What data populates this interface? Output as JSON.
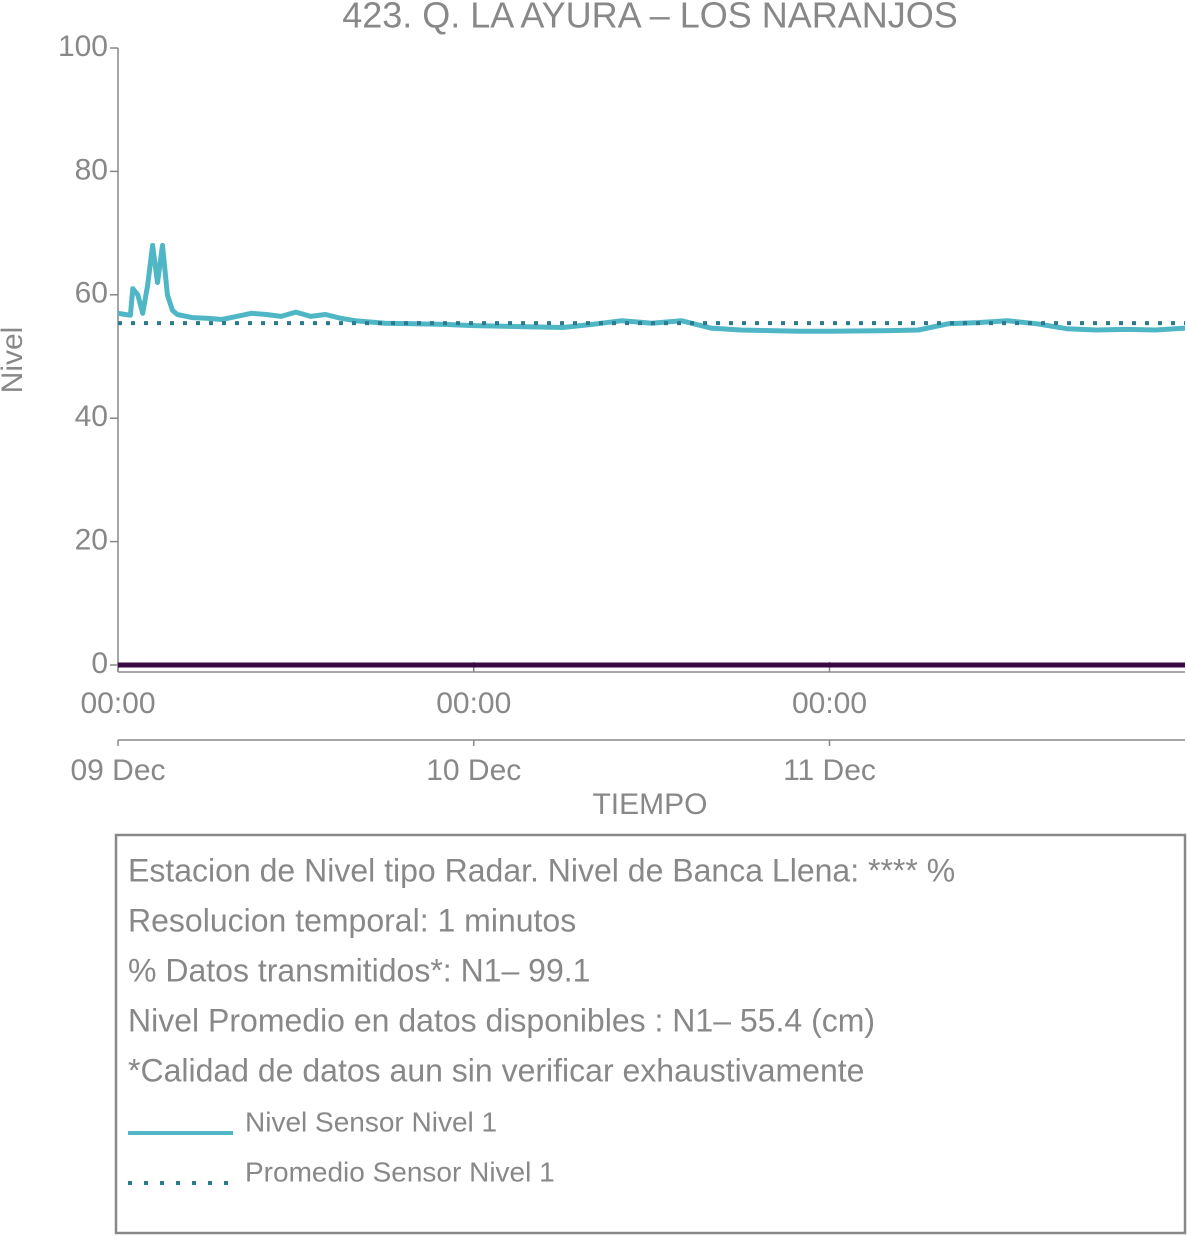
{
  "chart_data": {
    "type": "line",
    "title": "423. Q. LA AYURA – LOS NARANJOS",
    "ylabel": "Nivel",
    "xlabel": "TIEMPO",
    "ylim": [
      0,
      100
    ],
    "yticks": [
      0,
      20,
      40,
      60,
      80,
      100
    ],
    "xlim": [
      "09 Dec 00:00",
      "11 Dec 23:59"
    ],
    "xticks": [
      {
        "value": "09 Dec 00:00",
        "label": "00:00",
        "date": "09 Dec"
      },
      {
        "value": "10 Dec 00:00",
        "label": "00:00",
        "date": "10 Dec"
      },
      {
        "value": "11 Dec 00:00",
        "label": "00:00",
        "date": "11 Dec"
      }
    ],
    "x": [
      "09 Dec 00:00",
      "09 Dec 00:30",
      "09 Dec 00:50",
      "09 Dec 01:00",
      "09 Dec 01:20",
      "09 Dec 01:40",
      "09 Dec 02:00",
      "09 Dec 02:20",
      "09 Dec 02:40",
      "09 Dec 03:00",
      "09 Dec 03:20",
      "09 Dec 03:40",
      "09 Dec 04:00",
      "09 Dec 05:00",
      "09 Dec 06:00",
      "09 Dec 07:00",
      "09 Dec 08:00",
      "09 Dec 09:00",
      "09 Dec 10:00",
      "09 Dec 11:00",
      "09 Dec 12:00",
      "09 Dec 13:00",
      "09 Dec 14:00",
      "09 Dec 15:00",
      "09 Dec 16:00",
      "09 Dec 18:00",
      "09 Dec 20:00",
      "09 Dec 22:00",
      "10 Dec 00:00",
      "10 Dec 02:00",
      "10 Dec 04:00",
      "10 Dec 06:00",
      "10 Dec 08:00",
      "10 Dec 10:00",
      "10 Dec 12:00",
      "10 Dec 14:00",
      "10 Dec 16:00",
      "10 Dec 18:00",
      "10 Dec 20:00",
      "10 Dec 22:00",
      "11 Dec 00:00",
      "11 Dec 04:00",
      "11 Dec 06:00",
      "11 Dec 08:00",
      "11 Dec 10:00",
      "11 Dec 12:00",
      "11 Dec 14:00",
      "11 Dec 16:00",
      "11 Dec 18:00",
      "11 Dec 20:00",
      "11 Dec 22:00",
      "11 Dec 23:59"
    ],
    "series": [
      {
        "name": "Nivel Sensor Nivel 1",
        "color": "#4fb6c5",
        "style": "solid",
        "values": [
          57,
          56.8,
          56.7,
          61,
          60,
          57,
          61.5,
          68,
          62,
          68,
          60,
          57.5,
          56.8,
          56.3,
          56.2,
          56,
          56.5,
          57,
          56.8,
          56.5,
          57.2,
          56.5,
          56.8,
          56.2,
          55.8,
          55.4,
          55.3,
          55.2,
          55,
          54.9,
          54.8,
          54.7,
          55.2,
          55.8,
          55.4,
          55.8,
          54.6,
          54.3,
          54.2,
          54.1,
          54.1,
          54.2,
          54.3,
          55.3,
          55.5,
          55.8,
          55.3,
          54.5,
          54.3,
          54.4,
          54.3,
          54.6
        ]
      },
      {
        "name": "Promedio Sensor Nivel 1",
        "color": "#2b7a8e",
        "style": "dotted",
        "value": 55.4
      }
    ],
    "baseline": {
      "value": 0,
      "color": "#3a0a45"
    },
    "info": [
      "Estacion de Nivel tipo Radar. Nivel de Banca Llena: **** %",
      "Resolucion temporal: 1 minutos",
      "% Datos transmitidos*: N1– 99.1",
      "Nivel Promedio en datos disponibles : N1– 55.4 (cm)",
      "*Calidad de datos aun sin verificar exhaustivamente"
    ]
  }
}
